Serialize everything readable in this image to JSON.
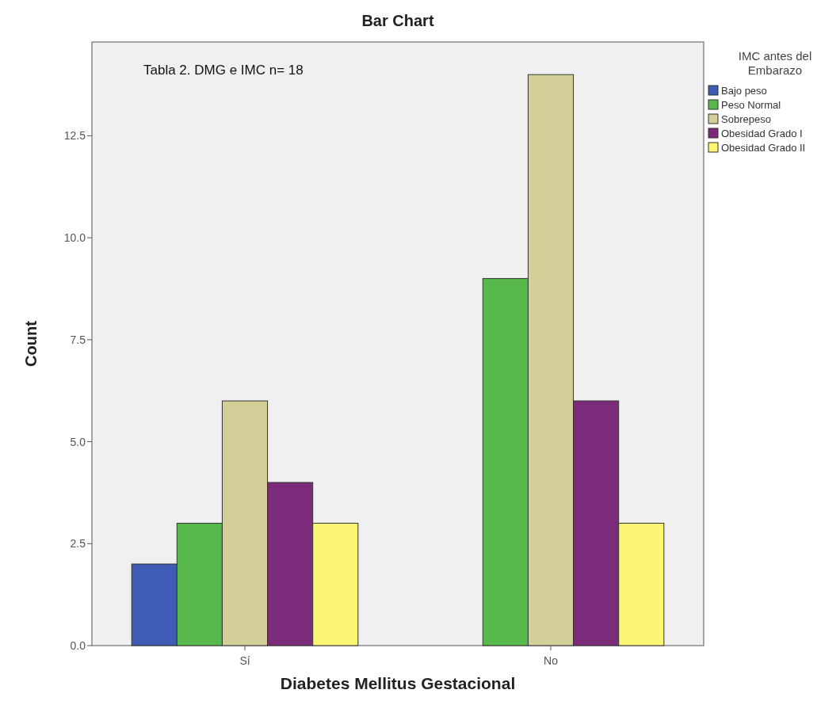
{
  "chart_data": {
    "type": "bar",
    "title": "Bar Chart",
    "xlabel": "Diabetes Mellitus Gestacional",
    "ylabel": "Count",
    "legend_title": "IMC antes del Embarazo",
    "annotations": [
      "Tabla 2. DMG e IMC n= 18"
    ],
    "categories": [
      "Sí",
      "No"
    ],
    "series": [
      {
        "name": "Bajo peso",
        "color": "#3e5bb5",
        "values": [
          2,
          null
        ]
      },
      {
        "name": "Peso Normal",
        "color": "#57b94b",
        "values": [
          3,
          9
        ]
      },
      {
        "name": "Sobrepeso",
        "color": "#d3cf98",
        "values": [
          6,
          14
        ]
      },
      {
        "name": "Obesidad Grado I",
        "color": "#7b2b7a",
        "values": [
          4,
          6
        ]
      },
      {
        "name": "Obesidad Grado II",
        "color": "#fbf674",
        "values": [
          3,
          3
        ]
      }
    ],
    "ylim": [
      0,
      14.8
    ],
    "yticks": [
      {
        "value": 0,
        "label": "0.0"
      },
      {
        "value": 2.5,
        "label": "2.5"
      },
      {
        "value": 5,
        "label": "5.0"
      },
      {
        "value": 7.5,
        "label": "7.5"
      },
      {
        "value": 10,
        "label": "10.0"
      },
      {
        "value": 12.5,
        "label": "12.5"
      }
    ],
    "grid": false,
    "legend": "top right"
  }
}
